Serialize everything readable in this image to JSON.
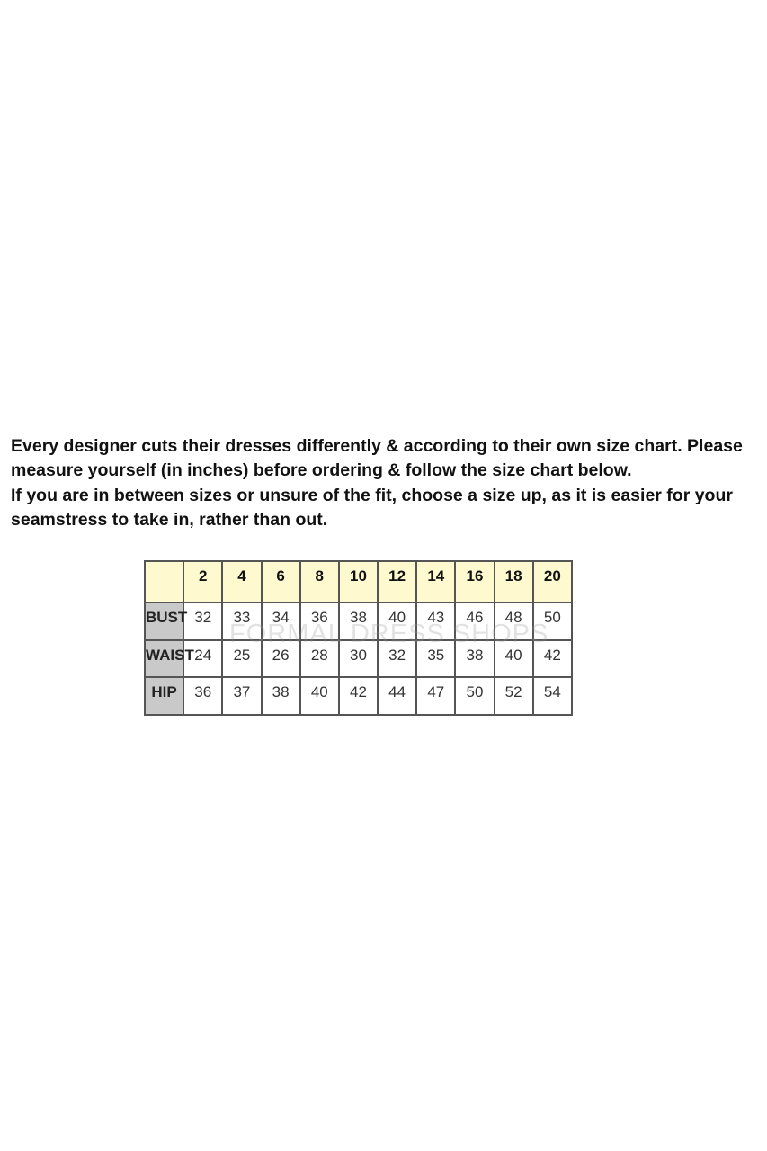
{
  "intro": {
    "paragraph1": "Every designer cuts their dresses differently & according to their own size chart. Please measure yourself (in inches) before ordering & follow the size chart below.",
    "paragraph2": "If you are in between sizes or unsure of the fit, choose a size up, as it is easier for your seamstress to take in, rather than out."
  },
  "size_chart": {
    "sizes": [
      "2",
      "4",
      "6",
      "8",
      "10",
      "12",
      "14",
      "16",
      "18",
      "20"
    ],
    "rows": [
      {
        "label": "BUST",
        "values": [
          "32",
          "33",
          "34",
          "36",
          "38",
          "40",
          "43",
          "46",
          "48",
          "50"
        ]
      },
      {
        "label": "WAIST",
        "values": [
          "24",
          "25",
          "26",
          "28",
          "30",
          "32",
          "35",
          "38",
          "40",
          "42"
        ]
      },
      {
        "label": "HIP",
        "values": [
          "36",
          "37",
          "38",
          "40",
          "42",
          "44",
          "47",
          "50",
          "52",
          "54"
        ]
      }
    ],
    "watermark": "FORMAL DRESS SHOPS",
    "colors": {
      "header_bg": "#fff9cf",
      "label_bg": "#c9c9c9"
    }
  }
}
